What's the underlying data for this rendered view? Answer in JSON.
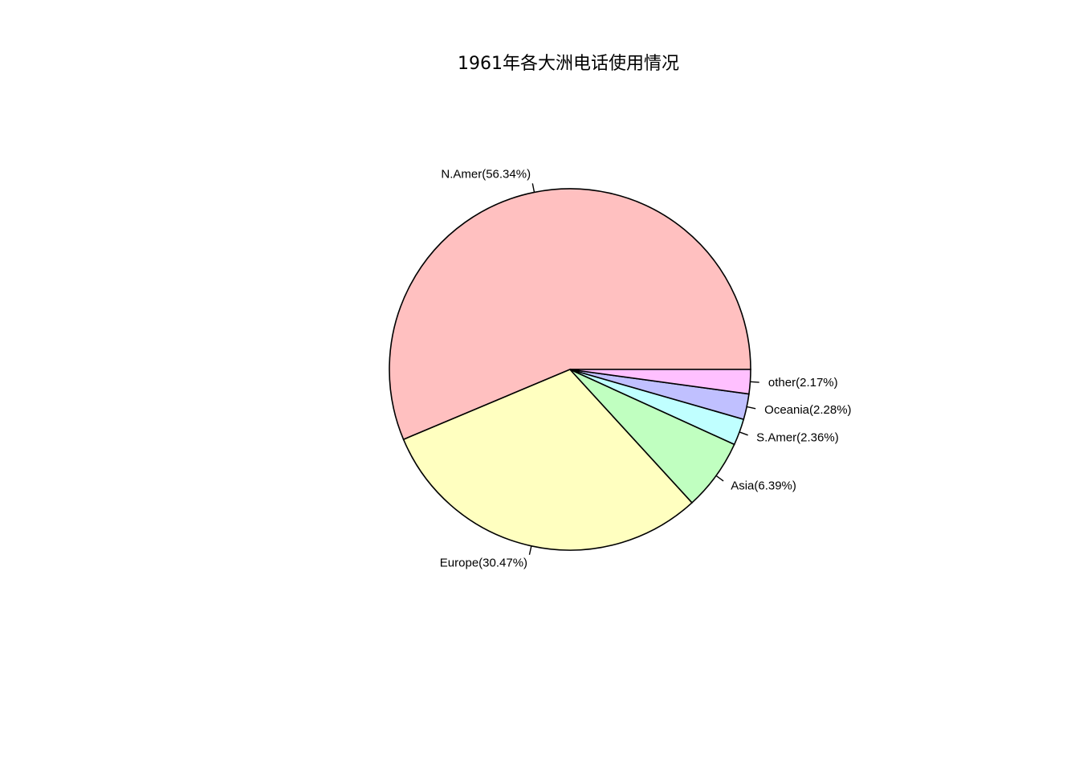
{
  "chart_data": {
    "type": "pie",
    "title": "1961年各大洲电话使用情况",
    "slices": [
      {
        "name": "N.Amer",
        "value": 56.34,
        "label": "N.Amer(56.34%)",
        "color": "#FFC0C0"
      },
      {
        "name": "Europe",
        "value": 30.47,
        "label": "Europe(30.47%)",
        "color": "#FFFFC0"
      },
      {
        "name": "Asia",
        "value": 6.39,
        "label": "Asia(6.39%)",
        "color": "#C0FFC0"
      },
      {
        "name": "S.Amer",
        "value": 2.36,
        "label": "S.Amer(2.36%)",
        "color": "#C0FFFF"
      },
      {
        "name": "Oceania",
        "value": 2.28,
        "label": "Oceania(2.28%)",
        "color": "#C0C0FF"
      },
      {
        "name": "other",
        "value": 2.17,
        "label": "other(2.17%)",
        "color": "#FFC0FF"
      }
    ],
    "start_angle_deg": 0,
    "direction": "counterclockwise"
  }
}
